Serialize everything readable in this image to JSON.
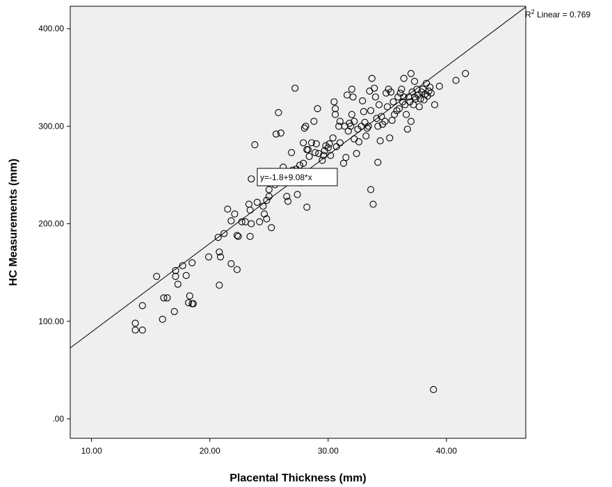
{
  "chart_data": {
    "type": "scatter",
    "xlabel": "Placental Thickness (mm)",
    "ylabel": "HC Measurements (mm)",
    "xlim": [
      8.2,
      46.7
    ],
    "ylim": [
      -20,
      423
    ],
    "x_ticks": [
      "10.00",
      "20.00",
      "30.00",
      "40.00"
    ],
    "y_ticks": [
      ".00",
      "100.00",
      "200.00",
      "300.00",
      "400.00"
    ],
    "x_tick_values": [
      10,
      20,
      30,
      40
    ],
    "y_tick_values": [
      0,
      100,
      200,
      300,
      400
    ],
    "grid": false,
    "background": "#efefef",
    "marker_color": "#000000",
    "fit_line": {
      "intercept": -1.8,
      "slope": 9.08,
      "equation_label": "y=-1.8+9.08*x"
    },
    "r2_label": {
      "prefix": "R",
      "sup": "2",
      "text": " Linear = 0.769"
    },
    "points": [
      [
        13.7,
        98
      ],
      [
        13.7,
        91
      ],
      [
        14.3,
        91
      ],
      [
        14.3,
        116
      ],
      [
        15.5,
        146
      ],
      [
        16.1,
        124
      ],
      [
        16.0,
        102
      ],
      [
        16.4,
        124
      ],
      [
        17.1,
        152
      ],
      [
        17.1,
        146
      ],
      [
        17.0,
        110
      ],
      [
        17.3,
        138
      ],
      [
        17.7,
        157
      ],
      [
        18.0,
        147
      ],
      [
        18.2,
        119
      ],
      [
        18.3,
        126
      ],
      [
        18.5,
        118
      ],
      [
        18.6,
        118
      ],
      [
        18.5,
        160
      ],
      [
        19.9,
        166
      ],
      [
        20.7,
        186
      ],
      [
        20.8,
        171
      ],
      [
        20.9,
        166
      ],
      [
        20.8,
        137
      ],
      [
        21.2,
        190
      ],
      [
        21.5,
        215
      ],
      [
        21.8,
        203
      ],
      [
        22.1,
        210
      ],
      [
        22.3,
        188
      ],
      [
        22.4,
        187
      ],
      [
        22.3,
        153
      ],
      [
        22.7,
        202
      ],
      [
        23.0,
        202
      ],
      [
        21.8,
        159
      ],
      [
        23.3,
        220
      ],
      [
        23.4,
        214
      ],
      [
        23.5,
        246
      ],
      [
        23.5,
        200
      ],
      [
        23.4,
        187
      ],
      [
        23.8,
        281
      ],
      [
        24.0,
        222
      ],
      [
        24.2,
        202
      ],
      [
        24.5,
        218
      ],
      [
        24.6,
        210
      ],
      [
        24.8,
        205
      ],
      [
        24.8,
        224
      ],
      [
        25.0,
        228
      ],
      [
        25.0,
        235
      ],
      [
        25.2,
        196
      ],
      [
        25.5,
        240
      ],
      [
        25.6,
        292
      ],
      [
        25.8,
        314
      ],
      [
        26.0,
        293
      ],
      [
        26.2,
        258
      ],
      [
        26.3,
        243
      ],
      [
        26.5,
        228
      ],
      [
        26.6,
        223
      ],
      [
        26.9,
        273
      ],
      [
        27.0,
        255
      ],
      [
        27.2,
        339
      ],
      [
        27.3,
        256
      ],
      [
        27.4,
        230
      ],
      [
        27.6,
        260
      ],
      [
        27.7,
        242
      ],
      [
        27.9,
        283
      ],
      [
        27.9,
        262
      ],
      [
        28.0,
        298
      ],
      [
        28.1,
        300
      ],
      [
        28.2,
        276
      ],
      [
        28.2,
        217
      ],
      [
        28.3,
        276
      ],
      [
        28.4,
        269
      ],
      [
        28.6,
        283
      ],
      [
        28.8,
        305
      ],
      [
        28.9,
        273
      ],
      [
        29.0,
        282
      ],
      [
        29.1,
        318
      ],
      [
        29.2,
        272
      ],
      [
        29.5,
        265
      ],
      [
        29.6,
        270
      ],
      [
        29.7,
        275
      ],
      [
        29.8,
        280
      ],
      [
        30.0,
        278
      ],
      [
        30.1,
        282
      ],
      [
        30.2,
        270
      ],
      [
        30.4,
        288
      ],
      [
        30.5,
        325
      ],
      [
        30.6,
        318
      ],
      [
        30.6,
        312
      ],
      [
        30.7,
        279
      ],
      [
        30.9,
        300
      ],
      [
        31.0,
        305
      ],
      [
        31.0,
        283
      ],
      [
        31.3,
        262
      ],
      [
        31.4,
        300
      ],
      [
        31.5,
        268
      ],
      [
        31.6,
        332
      ],
      [
        31.7,
        295
      ],
      [
        31.8,
        303
      ],
      [
        31.9,
        300
      ],
      [
        32.0,
        338
      ],
      [
        32.0,
        312
      ],
      [
        32.1,
        330
      ],
      [
        32.2,
        305
      ],
      [
        32.2,
        287
      ],
      [
        32.4,
        272
      ],
      [
        32.5,
        297
      ],
      [
        32.6,
        284
      ],
      [
        32.8,
        300
      ],
      [
        32.9,
        326
      ],
      [
        33.0,
        315
      ],
      [
        33.1,
        304
      ],
      [
        33.2,
        290
      ],
      [
        33.3,
        298
      ],
      [
        33.4,
        300
      ],
      [
        33.5,
        336
      ],
      [
        33.6,
        316
      ],
      [
        33.6,
        235
      ],
      [
        33.7,
        349
      ],
      [
        33.8,
        220
      ],
      [
        33.9,
        339
      ],
      [
        34.0,
        330
      ],
      [
        34.1,
        308
      ],
      [
        34.2,
        263
      ],
      [
        34.2,
        300
      ],
      [
        34.3,
        322
      ],
      [
        34.4,
        285
      ],
      [
        34.5,
        310
      ],
      [
        34.6,
        302
      ],
      [
        34.8,
        305
      ],
      [
        34.9,
        334
      ],
      [
        35.0,
        320
      ],
      [
        35.1,
        338
      ],
      [
        35.2,
        288
      ],
      [
        35.3,
        335
      ],
      [
        35.4,
        306
      ],
      [
        35.5,
        325
      ],
      [
        35.6,
        312
      ],
      [
        35.8,
        316
      ],
      [
        35.9,
        330
      ],
      [
        36.0,
        318
      ],
      [
        36.1,
        334
      ],
      [
        36.2,
        338
      ],
      [
        36.3,
        325
      ],
      [
        36.4,
        349
      ],
      [
        36.4,
        330
      ],
      [
        36.5,
        322
      ],
      [
        36.6,
        312
      ],
      [
        36.7,
        297
      ],
      [
        36.8,
        330
      ],
      [
        36.9,
        325
      ],
      [
        37.0,
        354
      ],
      [
        37.0,
        305
      ],
      [
        37.1,
        335
      ],
      [
        37.2,
        322
      ],
      [
        37.3,
        330
      ],
      [
        37.3,
        346
      ],
      [
        37.4,
        328
      ],
      [
        37.5,
        338
      ],
      [
        37.6,
        332
      ],
      [
        37.7,
        320
      ],
      [
        37.8,
        328
      ],
      [
        37.9,
        335
      ],
      [
        38.0,
        338
      ],
      [
        38.1,
        327
      ],
      [
        38.2,
        333
      ],
      [
        38.3,
        344
      ],
      [
        38.4,
        331
      ],
      [
        38.5,
        336
      ],
      [
        38.6,
        340
      ],
      [
        38.7,
        334
      ],
      [
        38.9,
        30
      ],
      [
        39.0,
        322
      ],
      [
        39.4,
        341
      ],
      [
        40.8,
        347
      ],
      [
        41.6,
        354
      ]
    ]
  }
}
